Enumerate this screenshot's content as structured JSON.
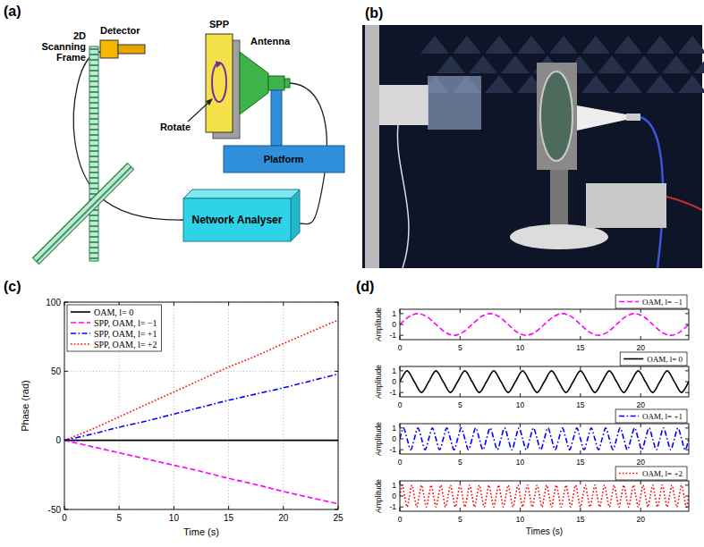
{
  "panel_labels": [
    "(a)",
    "(b)",
    "(c)",
    "(d)"
  ],
  "diagram": {
    "scanning_frame": [
      "2D",
      "Scanning",
      "Frame"
    ],
    "detector": "Detector",
    "spp": "SPP",
    "rotate": "Rotate",
    "antenna": "Antenna",
    "platform": "Platform",
    "network_analyser": "Network Analyser"
  },
  "chart_data": [
    {
      "type": "line",
      "xlabel": "Time (s)",
      "ylabel": "Phase (rad)",
      "xlim": [
        0,
        25
      ],
      "xticks": [
        0,
        5,
        10,
        15,
        20,
        25
      ],
      "ylim": [
        -50,
        100
      ],
      "yticks": [
        -50,
        0,
        50,
        100
      ],
      "grid": true,
      "legend": "upper left",
      "x": [
        0,
        2.5,
        5,
        7.5,
        10,
        12.5,
        15,
        17.5,
        20,
        22.5,
        25
      ],
      "series": [
        {
          "name": "OAM, l= 0",
          "color": "#000000",
          "line_style": "solid",
          "values": [
            0,
            0,
            0,
            0,
            0,
            0,
            0,
            0,
            0,
            0,
            0
          ]
        },
        {
          "name": "SPP, OAM, l= −1",
          "color": "#ff00ff",
          "line_style": "dashed",
          "values": [
            0,
            -4.5,
            -9,
            -13.5,
            -18,
            -22.5,
            -27.5,
            -32,
            -37,
            -41.5,
            -46
          ]
        },
        {
          "name": "SPP, OAM, l= +1",
          "color": "#0000ff",
          "line_style": "dashdot",
          "values": [
            0,
            4.5,
            9.5,
            14,
            19,
            24,
            29,
            33.5,
            38,
            43,
            48
          ]
        },
        {
          "name": "SPP, OAM, l= +2",
          "color": "#ff0000",
          "line_style": "dotted",
          "values": [
            0,
            8,
            17,
            26,
            35,
            44,
            53,
            61,
            70,
            78.5,
            87
          ]
        }
      ]
    },
    {
      "type": "line",
      "ylabel": "Amplitude",
      "xlim": [
        0,
        24
      ],
      "xticks": [
        0,
        5,
        10,
        15,
        20
      ],
      "ylim": [
        -1.4,
        1.4
      ],
      "yticks": [
        -1,
        0,
        1
      ],
      "grid": false,
      "legend": "upper right",
      "x": [
        0,
        0.75,
        1.5,
        2.25,
        3,
        3.75,
        4.5,
        5.25,
        6,
        6.75,
        7.5,
        8.25,
        9,
        9.75,
        10.5,
        11.25,
        12,
        12.75,
        13.5,
        14.25,
        15,
        15.75,
        16.5,
        17.25,
        18,
        18.75,
        19.5,
        20.25,
        21,
        21.75,
        22.5,
        23.25,
        24
      ],
      "series": [
        {
          "name": "OAM, l= −1",
          "color": "#ff00ff",
          "line_style": "dashed",
          "values": [
            0,
            0.71,
            1,
            0.71,
            0,
            -0.71,
            -1,
            -0.71,
            0,
            0.71,
            1,
            0.71,
            0,
            -0.71,
            -1,
            -0.71,
            0,
            0.71,
            1,
            0.71,
            0,
            -0.71,
            -1,
            -0.71,
            0,
            0.71,
            1,
            0.71,
            0,
            -0.71,
            -1,
            -0.71,
            0
          ]
        }
      ]
    },
    {
      "type": "line",
      "ylabel": "Amplitude",
      "xlim": [
        0,
        24
      ],
      "xticks": [
        0,
        5,
        10,
        15,
        20
      ],
      "ylim": [
        -1.4,
        1.4
      ],
      "yticks": [
        -1,
        0,
        1
      ],
      "grid": false,
      "legend": "upper right",
      "x": [
        0,
        0.6,
        1.2,
        1.8,
        2.4,
        3,
        3.6,
        4.2,
        4.8,
        5.4,
        6,
        6.6,
        7.2,
        7.8,
        8.4,
        9,
        9.6,
        10.2,
        10.8,
        11.4,
        12,
        12.6,
        13.2,
        13.8,
        14.4,
        15,
        15.6,
        16.2,
        16.8,
        17.4,
        18,
        18.6,
        19.2,
        19.8,
        20.4,
        21,
        21.6,
        22.2,
        22.8,
        23.4,
        24
      ],
      "series": [
        {
          "name": "OAM, l= 0",
          "color": "#000000",
          "line_style": "solid",
          "values": [
            0,
            1,
            0,
            -1,
            0,
            1,
            0,
            -1,
            0,
            1,
            0,
            -1,
            0,
            1,
            0,
            -1,
            0,
            1,
            0,
            -1,
            0,
            1,
            0,
            -1,
            0,
            1,
            0,
            -1,
            0,
            1,
            0,
            -1,
            0,
            1,
            0,
            -1,
            0,
            1,
            0,
            -1,
            0
          ]
        }
      ]
    },
    {
      "type": "line",
      "ylabel": "Amplitude",
      "xlim": [
        0,
        24
      ],
      "xticks": [
        0,
        5,
        10,
        15,
        20
      ],
      "ylim": [
        -1.4,
        1.4
      ],
      "yticks": [
        -1,
        0,
        1
      ],
      "grid": false,
      "legend": "upper right",
      "x": [
        0,
        0.3,
        0.6,
        0.9,
        1.2,
        1.5,
        1.8,
        2.1,
        2.4,
        2.7,
        3,
        3.3,
        3.6,
        3.9,
        4.2,
        4.5,
        4.8,
        5.1,
        5.4,
        5.7,
        6,
        6.3,
        6.6,
        6.9,
        7.2,
        7.5,
        7.8,
        8.1,
        8.4,
        8.7,
        9,
        9.3,
        9.6,
        9.9,
        10.2,
        10.5,
        10.8,
        11.1,
        11.4,
        11.7,
        12,
        12.3,
        12.6,
        12.9,
        13.2,
        13.5,
        13.8,
        14.1,
        14.4,
        14.7,
        15,
        15.3,
        15.6,
        15.9,
        16.2,
        16.5,
        16.8,
        17.1,
        17.4,
        17.7,
        18,
        18.3,
        18.6,
        18.9,
        19.2,
        19.5,
        19.8,
        20.1,
        20.4,
        20.7,
        21,
        21.3,
        21.6,
        21.9,
        22.2,
        22.5,
        22.8,
        23.1,
        23.4,
        23.7,
        24
      ],
      "series": [
        {
          "name": "OAM, l= +1",
          "color": "#0000ff",
          "line_style": "dashdot",
          "values": [
            0,
            1,
            0,
            -1,
            0,
            1,
            0,
            -1,
            0,
            1,
            0,
            -1,
            0,
            1,
            0,
            -1,
            0,
            1,
            0,
            -1,
            0,
            1,
            0,
            -1,
            0,
            1,
            0,
            -1,
            0,
            1,
            0,
            -1,
            0,
            1,
            0,
            -1,
            0,
            1,
            0,
            -1,
            0,
            1,
            0,
            -1,
            0,
            1,
            0,
            -1,
            0,
            1,
            0,
            -1,
            0,
            1,
            0,
            -1,
            0,
            1,
            0,
            -1,
            0,
            1,
            0,
            -1,
            0,
            1,
            0,
            -1,
            0,
            1,
            0,
            -1,
            0,
            1,
            0,
            -1,
            0,
            1,
            0,
            -1,
            0
          ]
        }
      ]
    },
    {
      "type": "line",
      "xlabel": "Times (s)",
      "ylabel": "Amplitude",
      "xlim": [
        0,
        24
      ],
      "xticks": [
        0,
        5,
        10,
        15,
        20
      ],
      "ylim": [
        -1.4,
        1.4
      ],
      "yticks": [
        -1,
        0,
        1
      ],
      "grid": false,
      "legend": "upper right",
      "x": [
        0,
        0.2,
        0.4,
        0.6,
        0.8,
        1,
        1.2,
        1.4,
        1.6,
        1.8,
        2,
        2.2,
        2.4,
        2.6,
        2.8,
        3,
        3.2,
        3.4,
        3.6,
        3.8,
        4,
        4.2,
        4.4,
        4.6,
        4.8,
        5,
        5.2,
        5.4,
        5.6,
        5.8,
        6,
        6.2,
        6.4,
        6.6,
        6.8,
        7,
        7.2,
        7.4,
        7.6,
        7.8,
        8,
        8.2,
        8.4,
        8.6,
        8.8,
        9,
        9.2,
        9.4,
        9.6,
        9.8,
        10,
        10.2,
        10.4,
        10.6,
        10.8,
        11,
        11.2,
        11.4,
        11.6,
        11.8,
        12,
        12.2,
        12.4,
        12.6,
        12.8,
        13,
        13.2,
        13.4,
        13.6,
        13.8,
        14,
        14.2,
        14.4,
        14.6,
        14.8,
        15,
        15.2,
        15.4,
        15.6,
        15.8,
        16,
        16.2,
        16.4,
        16.6,
        16.8,
        17,
        17.2,
        17.4,
        17.6,
        17.8,
        18,
        18.2,
        18.4,
        18.6,
        18.8,
        19,
        19.2,
        19.4,
        19.6,
        19.8,
        20,
        20.2,
        20.4,
        20.6,
        20.8,
        21,
        21.2,
        21.4,
        21.6,
        21.8,
        22,
        22.2,
        22.4,
        22.6,
        22.8,
        23,
        23.2,
        23.4,
        23.6,
        23.8,
        24
      ],
      "series": [
        {
          "name": "OAM, l= +2",
          "color": "#ff0000",
          "line_style": "dotted",
          "values": [
            0,
            1,
            0,
            -1,
            0,
            1,
            0,
            -1,
            0,
            1,
            0,
            -1,
            0,
            1,
            0,
            -1,
            0,
            1,
            0,
            -1,
            0,
            1,
            0,
            -1,
            0,
            1,
            0,
            -1,
            0,
            1,
            0,
            -1,
            0,
            1,
            0,
            -1,
            0,
            1,
            0,
            -1,
            0,
            1,
            0,
            -1,
            0,
            1,
            0,
            -1,
            0,
            1,
            0,
            -1,
            0,
            1,
            0,
            -1,
            0,
            1,
            0,
            -1,
            0,
            1,
            0,
            -1,
            0,
            1,
            0,
            -1,
            0,
            1,
            0,
            -1,
            0,
            1,
            0,
            -1,
            0,
            1,
            0,
            -1,
            0,
            1,
            0,
            -1,
            0,
            1,
            0,
            -1,
            0,
            1,
            0,
            -1,
            0,
            1,
            0,
            -1,
            0,
            1,
            0,
            -1,
            0,
            1,
            0,
            -1,
            0,
            1,
            0,
            -1,
            0,
            1,
            0,
            -1,
            0,
            1,
            0,
            -1,
            0,
            1,
            0,
            -1,
            0
          ]
        }
      ]
    }
  ]
}
